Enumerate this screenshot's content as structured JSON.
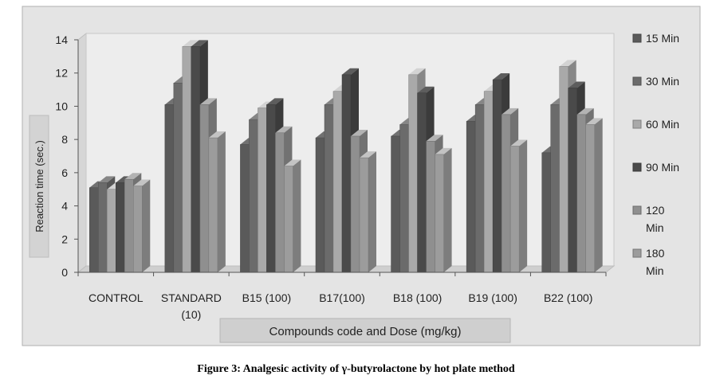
{
  "caption": "Figure 3: Analgesic activity of γ-butyrolactone by hot plate method",
  "chart_data": {
    "type": "bar",
    "style": "3d-clustered",
    "title": "",
    "xlabel": "Compounds code and Dose (mg/kg)",
    "ylabel": "Reaction time (sec.)",
    "ylim": [
      0,
      14
    ],
    "yticks": [
      "0",
      "2",
      "4",
      "6",
      "8",
      "10",
      "12",
      "14"
    ],
    "grid": false,
    "legend_position": "right",
    "categories": [
      [
        "CONTROL"
      ],
      [
        "STANDARD",
        "(10)"
      ],
      [
        "B15 (100)"
      ],
      [
        "B17(100)"
      ],
      [
        "B18 (100)"
      ],
      [
        "B19 (100)"
      ],
      [
        "B22 (100)"
      ]
    ],
    "series": [
      {
        "name": [
          "15 Min"
        ],
        "color": "#5a5a5a",
        "values": [
          5.1,
          10.1,
          7.7,
          8.1,
          8.2,
          9.1,
          7.2
        ]
      },
      {
        "name": [
          "30 Min"
        ],
        "color": "#6b6b6b",
        "values": [
          5.4,
          11.4,
          9.2,
          10.1,
          8.9,
          10.1,
          10.1
        ]
      },
      {
        "name": [
          "60 Min"
        ],
        "color": "#a9a9a9",
        "values": [
          5.0,
          13.6,
          9.9,
          10.9,
          11.9,
          10.9,
          12.4
        ]
      },
      {
        "name": [
          "90 Min"
        ],
        "color": "#4a4a4a",
        "values": [
          5.4,
          13.6,
          10.1,
          11.9,
          10.8,
          11.6,
          11.1
        ]
      },
      {
        "name": [
          "120",
          "Min"
        ],
        "color": "#8f8f8f",
        "values": [
          5.6,
          10.1,
          8.4,
          8.2,
          7.9,
          9.5,
          9.5
        ]
      },
      {
        "name": [
          "180",
          "Min"
        ],
        "color": "#9c9c9c",
        "values": [
          5.2,
          8.1,
          6.4,
          6.9,
          7.1,
          7.6,
          8.9
        ]
      }
    ]
  }
}
